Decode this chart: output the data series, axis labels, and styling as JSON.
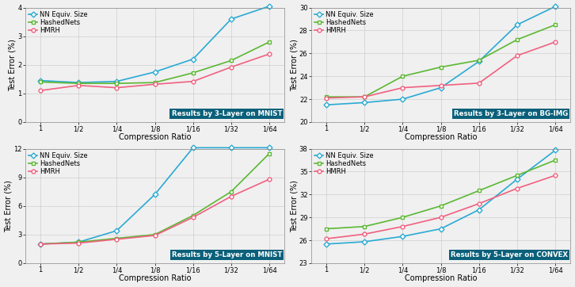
{
  "x_labels": [
    "1",
    "1/2",
    "1/4",
    "1/8",
    "1/16",
    "1/32",
    "1/64"
  ],
  "x_vals": [
    0,
    1,
    2,
    3,
    4,
    5,
    6
  ],
  "panels": [
    {
      "title": "Results by 3-Layer on MNIST",
      "ylabel": "Test Error (%)",
      "xlabel": "Compression Ratio",
      "ylim": [
        0,
        4
      ],
      "yticks": [
        0,
        1,
        2,
        3,
        4
      ],
      "nn": [
        1.45,
        1.38,
        1.42,
        1.75,
        2.2,
        3.6,
        4.05
      ],
      "hn": [
        1.4,
        1.35,
        1.35,
        1.38,
        1.72,
        2.15,
        2.8
      ],
      "hmrh": [
        1.1,
        1.28,
        1.2,
        1.32,
        1.42,
        1.92,
        2.38
      ]
    },
    {
      "title": "Results by 3-Layer on BG-IMG",
      "ylabel": "Test Error (%)",
      "xlabel": "Compression Ratio",
      "ylim": [
        20,
        30
      ],
      "yticks": [
        20,
        22,
        24,
        26,
        28,
        30
      ],
      "nn": [
        21.5,
        21.7,
        22.0,
        23.0,
        25.3,
        28.5,
        30.1
      ],
      "hn": [
        22.2,
        22.2,
        24.0,
        24.8,
        25.4,
        27.2,
        28.5
      ],
      "hmrh": [
        22.1,
        22.2,
        23.0,
        23.2,
        23.4,
        25.8,
        27.0
      ]
    },
    {
      "title": "Results by 5-Layer on MNIST",
      "ylabel": "Test Error (%)",
      "xlabel": "Compression Ratio",
      "ylim": [
        0,
        12
      ],
      "yticks": [
        0,
        3,
        6,
        9,
        12
      ],
      "nn": [
        2.0,
        2.2,
        3.4,
        7.2,
        12.1,
        12.1,
        12.1
      ],
      "hn": [
        2.0,
        2.2,
        2.6,
        3.0,
        5.0,
        7.5,
        11.5
      ],
      "hmrh": [
        2.0,
        2.1,
        2.5,
        2.9,
        4.8,
        7.0,
        8.8
      ]
    },
    {
      "title": "Results by 5-Layer on CONVEX",
      "ylabel": "Test Error (%)",
      "xlabel": "Compression Ratio",
      "ylim": [
        23,
        38
      ],
      "yticks": [
        23,
        26,
        29,
        32,
        35,
        38
      ],
      "nn": [
        25.5,
        25.8,
        26.5,
        27.5,
        30.0,
        34.0,
        37.8
      ],
      "hn": [
        27.5,
        27.8,
        29.0,
        30.5,
        32.5,
        34.5,
        36.5
      ],
      "hmrh": [
        26.2,
        26.8,
        27.8,
        29.0,
        30.8,
        32.8,
        34.5
      ]
    }
  ],
  "colors": {
    "nn": "#29aad4",
    "hn": "#5bb832",
    "hmrh": "#f06080"
  },
  "title_bg": "#0a607a",
  "title_fg": "white",
  "legend_labels": [
    "NN Equiv. Size",
    "HashedNets",
    "HMRH"
  ],
  "bg_color": "#f0f0f0"
}
